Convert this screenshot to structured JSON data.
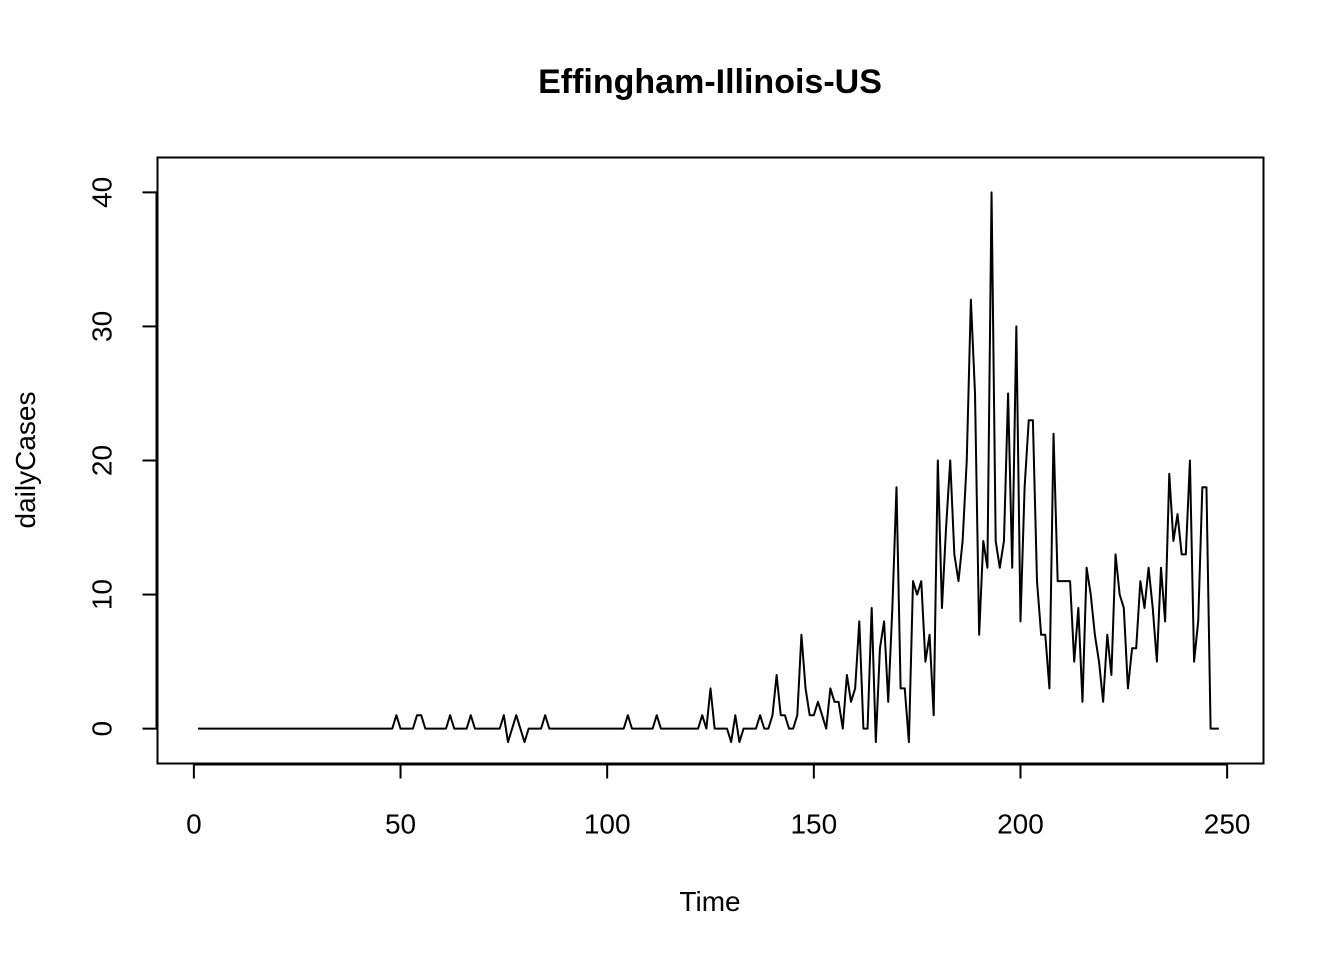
{
  "chart_data": {
    "type": "line",
    "title": "Effingham-Illinois-US",
    "xlabel": "Time",
    "ylabel": "dailyCases",
    "xlim": [
      -8.8,
      258.8
    ],
    "ylim": [
      -2.6,
      42.6
    ],
    "x_ticks": [
      0,
      50,
      100,
      150,
      200,
      250
    ],
    "y_ticks": [
      0,
      10,
      20,
      30,
      40
    ],
    "x_tick_labels": [
      "0",
      "50",
      "100",
      "150",
      "200",
      "250"
    ],
    "y_tick_labels": [
      "0",
      "10",
      "20",
      "30",
      "40"
    ],
    "grid": false,
    "legend": "none",
    "line_color": "#000000",
    "series": [
      {
        "x_start": 1,
        "values": [
          0,
          0,
          0,
          0,
          0,
          0,
          0,
          0,
          0,
          0,
          0,
          0,
          0,
          0,
          0,
          0,
          0,
          0,
          0,
          0,
          0,
          0,
          0,
          0,
          0,
          0,
          0,
          0,
          0,
          0,
          0,
          0,
          0,
          0,
          0,
          0,
          0,
          0,
          0,
          0,
          0,
          0,
          0,
          0,
          0,
          0,
          0,
          0,
          1,
          0,
          0,
          0,
          0,
          1,
          1,
          0,
          0,
          0,
          0,
          0,
          0,
          1,
          0,
          0,
          0,
          0,
          1,
          0,
          0,
          0,
          0,
          0,
          0,
          0,
          1,
          -1,
          0,
          1,
          0,
          -1,
          0,
          0,
          0,
          0,
          1,
          0,
          0,
          0,
          0,
          0,
          0,
          0,
          0,
          0,
          0,
          0,
          0,
          0,
          0,
          0,
          0,
          0,
          0,
          0,
          1,
          0,
          0,
          0,
          0,
          0,
          0,
          1,
          0,
          0,
          0,
          0,
          0,
          0,
          0,
          0,
          0,
          0,
          1,
          0,
          3,
          0,
          0,
          0,
          0,
          -1,
          1,
          -1,
          0,
          0,
          0,
          0,
          1,
          0,
          0,
          1,
          4,
          1,
          1,
          0,
          0,
          1,
          7,
          3,
          1,
          1,
          2,
          1,
          0,
          3,
          2,
          2,
          0,
          4,
          2,
          3,
          8,
          0,
          0,
          9,
          -1,
          6,
          8,
          2,
          9,
          18,
          3,
          3,
          -1,
          11,
          10,
          11,
          5,
          7,
          1,
          20,
          9,
          15,
          20,
          13,
          11,
          14,
          20,
          32,
          25,
          7,
          14,
          12,
          40,
          14,
          12,
          14,
          25,
          12,
          30,
          8,
          18,
          23,
          23,
          11,
          7,
          7,
          3,
          22,
          11,
          11,
          11,
          11,
          5,
          9,
          2,
          12,
          10,
          7,
          5,
          2,
          7,
          4,
          13,
          10,
          9,
          3,
          6,
          6,
          11,
          9,
          12,
          9,
          5,
          12,
          8,
          19,
          14,
          16,
          13,
          13,
          20,
          5,
          8,
          18,
          18,
          0,
          0,
          0
        ]
      }
    ]
  }
}
